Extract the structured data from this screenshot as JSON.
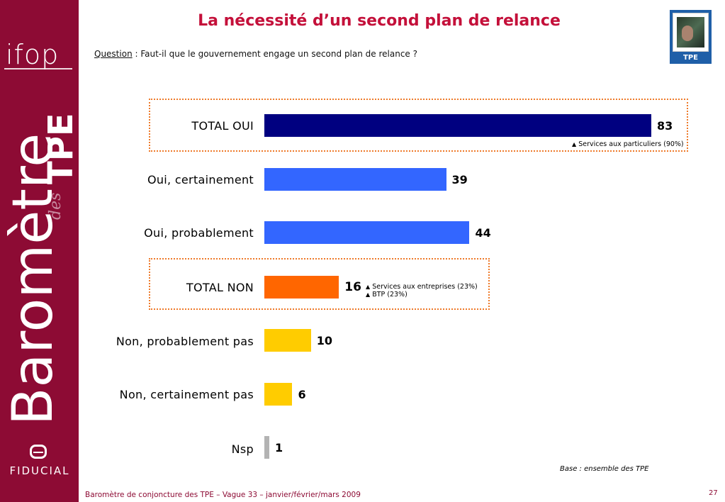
{
  "brand": {
    "ifop": "ifop",
    "barometre": "Baromètre",
    "des": "des",
    "tpe": "TPE",
    "fiducial": "FIDUCIAL"
  },
  "header": {
    "title": "La nécessité d’un second plan de relance",
    "question_label": "Question",
    "question_text": " :  Faut-il que le gouvernement engage un second plan de relance ?",
    "badge_label": "TPE"
  },
  "colors": {
    "total_oui": "#000080",
    "oui": "#3366ff",
    "total_non": "#ff6600",
    "non": "#ffcc00",
    "nsp": "#b3b3b3",
    "accent": "#8d0b34"
  },
  "chart_data": {
    "type": "bar",
    "orientation": "horizontal",
    "categories": [
      "TOTAL OUI",
      "Oui, certainement",
      "Oui, probablement",
      "TOTAL NON",
      "Non, probablement pas",
      "Non, certainement pas",
      "Nsp"
    ],
    "values": [
      83,
      39,
      44,
      16,
      10,
      6,
      1
    ],
    "xlim": [
      0,
      100
    ],
    "grid": false,
    "annotations": [
      {
        "category": "TOTAL OUI",
        "lines": [
          "Services aux particuliers (90%)"
        ]
      },
      {
        "category": "TOTAL NON",
        "lines": [
          "Services aux entreprises (23%)",
          "BTP (23%)"
        ]
      }
    ]
  },
  "footer": {
    "base": "Base : ensemble des TPE",
    "source": "Baromètre de conjoncture des TPE – Vague 33 – janvier/février/mars 2009",
    "page": "27"
  }
}
